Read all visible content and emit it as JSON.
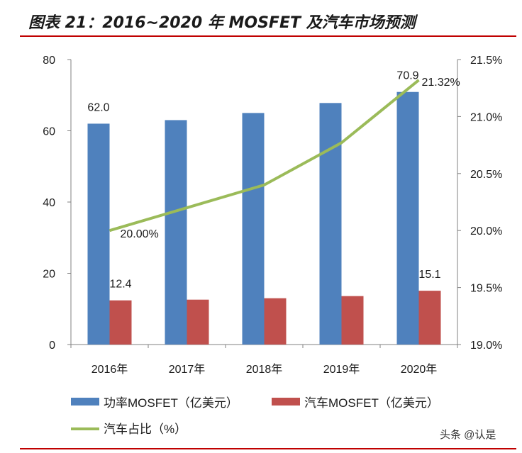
{
  "header": {
    "title": "图表 21：2016~2020 年 MOSFET 及汽车市场预测"
  },
  "watermark": {
    "text": "头条 @认是"
  },
  "colors": {
    "bar1": "#4f81bd",
    "bar2": "#c0504d",
    "line": "#9bbb59",
    "rule": "#c00000"
  },
  "chart_data": {
    "type": "bar",
    "categories": [
      "2016年",
      "2017年",
      "2018年",
      "2019年",
      "2020年"
    ],
    "series": [
      {
        "name": "功率MOSFET（亿美元）",
        "type": "bar",
        "axis": "left",
        "values": [
          62.0,
          63.0,
          65.0,
          67.8,
          70.9
        ]
      },
      {
        "name": "汽车MOSFET（亿美元）",
        "type": "bar",
        "axis": "left",
        "values": [
          12.4,
          12.6,
          13.0,
          13.6,
          15.1
        ]
      },
      {
        "name": "汽车占比（%）",
        "type": "line",
        "axis": "right",
        "values": [
          20.0,
          20.2,
          20.4,
          20.77,
          21.32
        ]
      }
    ],
    "left_axis": {
      "ylim": [
        0,
        80
      ],
      "ticks": [
        "0",
        "20",
        "40",
        "60",
        "80"
      ]
    },
    "right_axis": {
      "ylim": [
        19.0,
        21.5
      ],
      "ticks": [
        "19.0%",
        "19.5%",
        "20.0%",
        "20.5%",
        "21.0%",
        "21.5%"
      ]
    },
    "data_labels": [
      {
        "series": 0,
        "index": 0,
        "text": "62.0"
      },
      {
        "series": 0,
        "index": 4,
        "text": "70.9"
      },
      {
        "series": 1,
        "index": 0,
        "text": "12.4"
      },
      {
        "series": 1,
        "index": 4,
        "text": "15.1"
      },
      {
        "series": 2,
        "index": 0,
        "text": "20.00%"
      },
      {
        "series": 2,
        "index": 4,
        "text": "21.32%"
      }
    ],
    "legend": [
      "功率MOSFET（亿美元）",
      "汽车MOSFET（亿美元）",
      "汽车占比（%）"
    ]
  }
}
